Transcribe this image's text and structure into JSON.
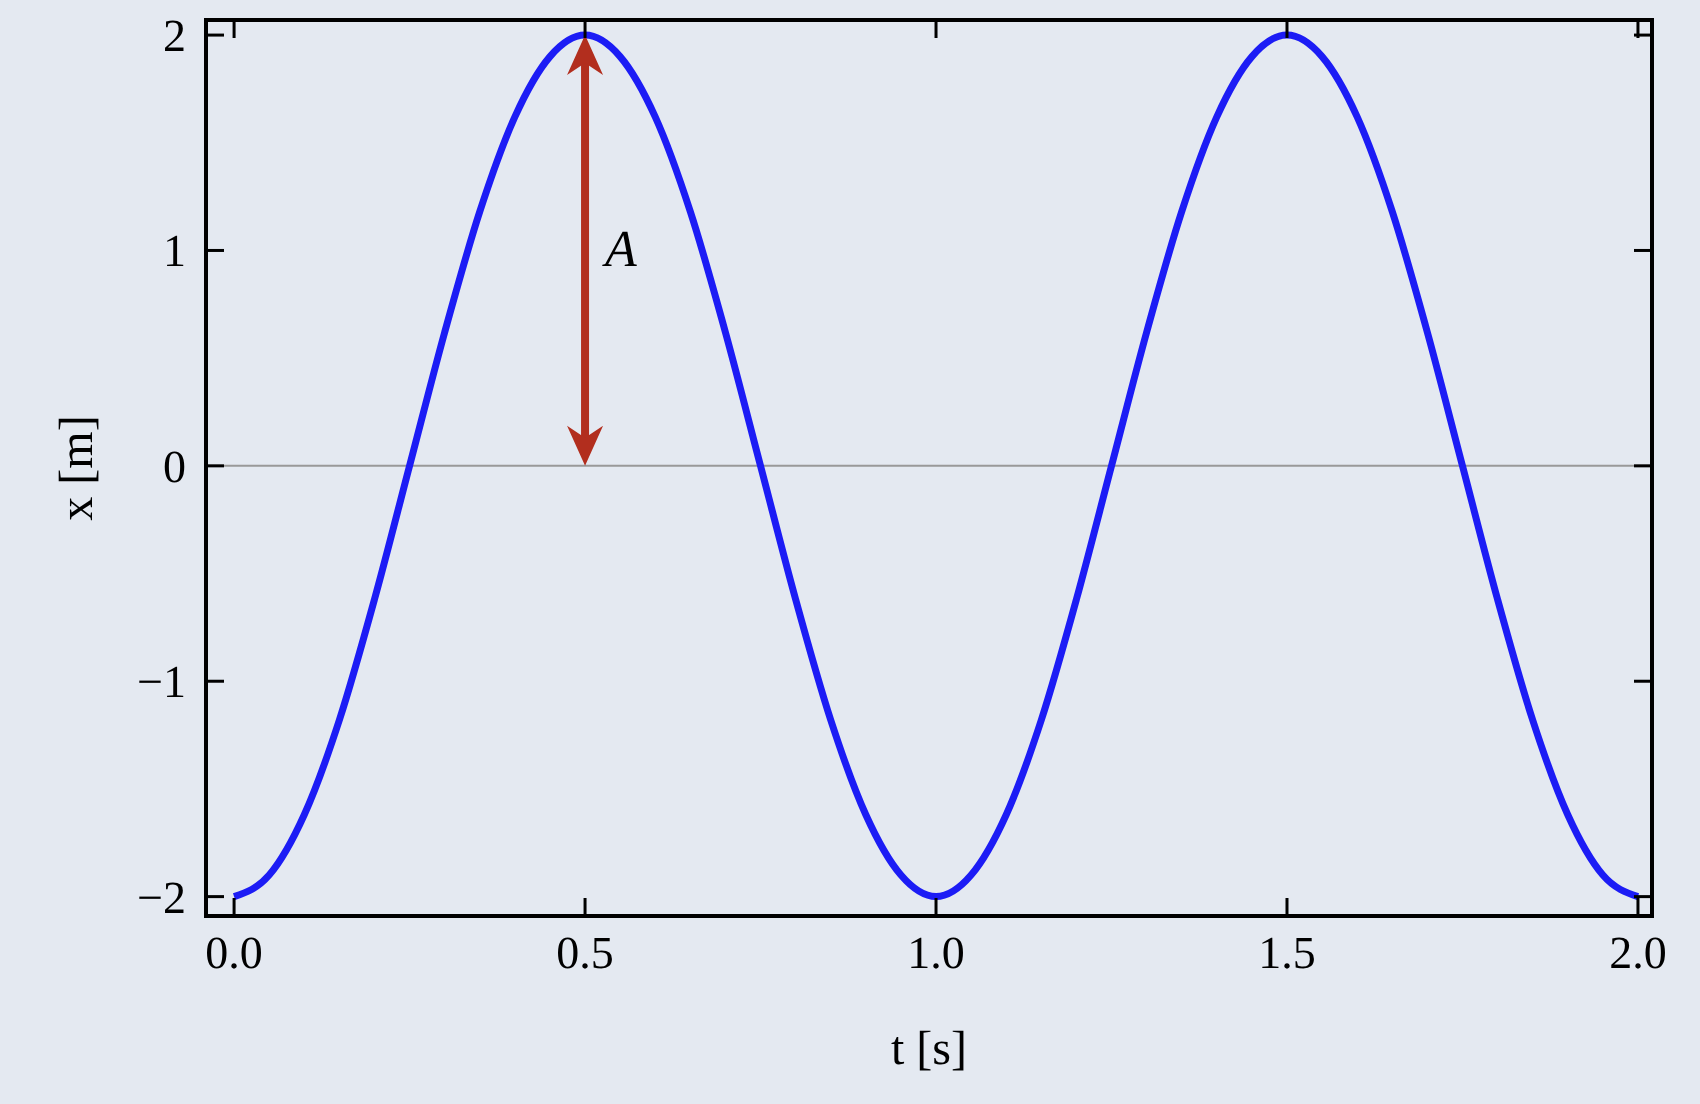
{
  "chart_data": {
    "type": "line",
    "xlabel": "t [s]",
    "ylabel": "x [m]",
    "x": [
      0,
      0.05,
      0.1,
      0.15,
      0.2,
      0.25,
      0.3,
      0.35,
      0.4,
      0.45,
      0.5,
      0.55,
      0.6,
      0.65,
      0.7,
      0.75,
      0.8,
      0.85,
      0.9,
      0.95,
      1,
      1.05,
      1.1,
      1.15,
      1.2,
      1.25,
      1.3,
      1.35,
      1.4,
      1.45,
      1.5,
      1.55,
      1.6,
      1.65,
      1.7,
      1.75,
      1.8,
      1.85,
      1.9,
      1.95,
      2
    ],
    "series": [
      {
        "color": "#1c1cf5",
        "values": [
          -2,
          -1.9,
          -1.62,
          -1.18,
          -0.62,
          0,
          0.62,
          1.18,
          1.62,
          1.9,
          2,
          1.9,
          1.62,
          1.18,
          0.62,
          0,
          -0.62,
          -1.18,
          -1.62,
          -1.9,
          -2,
          -1.9,
          -1.62,
          -1.18,
          -0.62,
          0,
          0.62,
          1.18,
          1.62,
          1.9,
          2,
          1.9,
          1.62,
          1.18,
          0.62,
          0,
          -0.62,
          -1.18,
          -1.62,
          -1.9,
          -2
        ]
      }
    ],
    "xlim": [
      -0.04,
      2.02
    ],
    "ylim": [
      -2.09,
      2.07
    ],
    "xticks": [
      {
        "value": 0,
        "label": "0.0"
      },
      {
        "value": 0.5,
        "label": "0.5"
      },
      {
        "value": 1,
        "label": "1.0"
      },
      {
        "value": 1.5,
        "label": "1.5"
      },
      {
        "value": 2,
        "label": "2.0"
      }
    ],
    "yticks": [
      -2,
      -1,
      0,
      1,
      2
    ],
    "ref_lines": [
      {
        "axis": "y",
        "value": 0,
        "color": "#999999"
      }
    ],
    "annotations": [
      "A"
    ],
    "grid": false,
    "marker": "none",
    "line_style": "solid"
  }
}
